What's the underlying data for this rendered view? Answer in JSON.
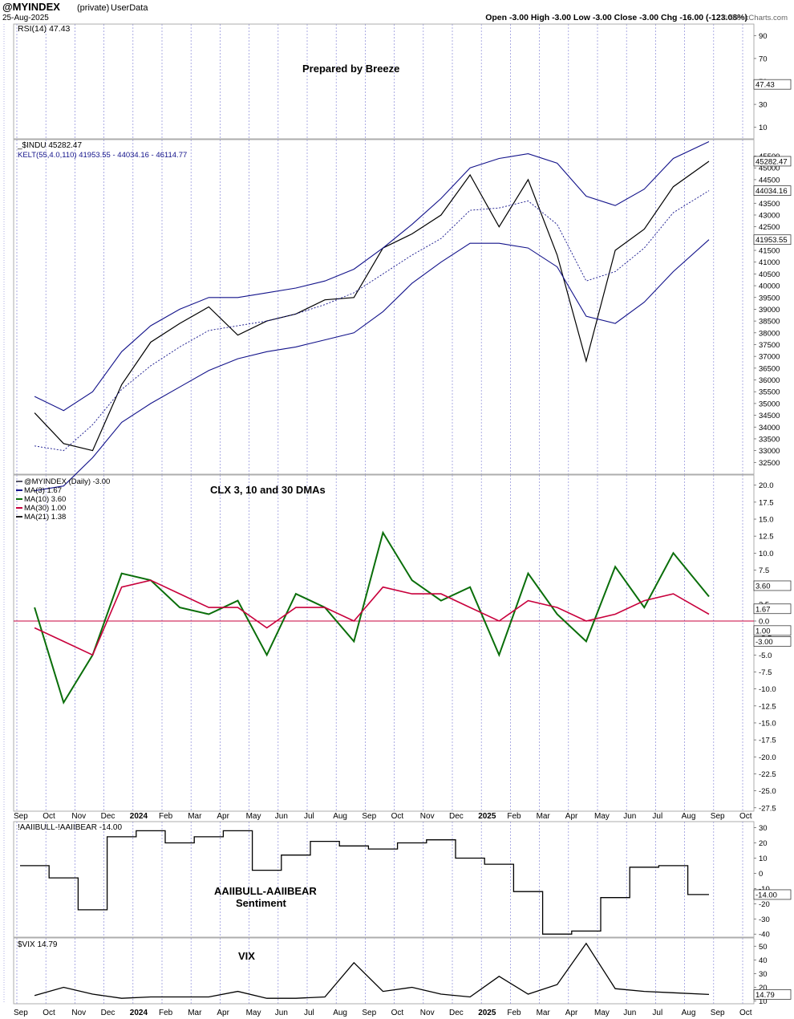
{
  "header": {
    "symbol": "@MYINDEX",
    "privacy": "(private)",
    "source": "UserData",
    "date": "25-Aug-2025",
    "ohlc": "Open -3.00  High -3.00  Low -3.00  Close -3.00  Chg -16.00 (-123.08%)",
    "credit": "© StockCharts.com"
  },
  "colors": {
    "grid": "#8a8ad8",
    "band": "#12128a",
    "ma10": "#0a6e0a",
    "ma30": "#c8003c",
    "clx_raw": "#b0b0dc",
    "zero_line": "#c8003c"
  },
  "chart_data": [
    {
      "type": "line",
      "panel": "rsi",
      "legend": "RSI(14) 47.43",
      "annotation": "Prepared by Breeze",
      "y_ticks": [
        90,
        70,
        50,
        30,
        10
      ],
      "last_value_tag": "47.43",
      "ylim": [
        0,
        100
      ]
    },
    {
      "type": "line",
      "panel": "price",
      "legend": [
        "_$INDU 45282.47",
        "KELT(55,4.0,110) 41953.55 - 44034.16 - 46114.77"
      ],
      "ylim": [
        32000,
        46200
      ],
      "y_ticks": [
        45500,
        45000,
        44500,
        44000,
        43500,
        43000,
        42500,
        42000,
        41500,
        41000,
        40500,
        40000,
        39500,
        39000,
        38500,
        38000,
        37500,
        37000,
        36500,
        36000,
        35500,
        35000,
        34500,
        34000,
        33500,
        33000,
        32500
      ],
      "last_value_tags": [
        "45282.47",
        "44034.16",
        "41953.55"
      ],
      "x": [
        "Sep-23",
        "Oct-23",
        "Nov-23",
        "Dec-23",
        "Jan-24",
        "Feb-24",
        "Mar-24",
        "Apr-24",
        "May-24",
        "Jun-24",
        "Jul-24",
        "Aug-24",
        "Sep-24",
        "Oct-24",
        "Nov-24",
        "Dec-24",
        "Jan-25",
        "Feb-25",
        "Mar-25",
        "Apr-25",
        "May-25",
        "Jun-25",
        "Jul-25",
        "Aug-25"
      ],
      "series": [
        {
          "values": [
            34600,
            33300,
            33000,
            35800,
            37600,
            38400,
            39100,
            37900,
            38500,
            38800,
            39400,
            39500,
            41600,
            42200,
            43000,
            44700,
            42500,
            44500,
            41300,
            36800,
            41500,
            42400,
            44200,
            45282
          ]
        },
        {
          "values": [
            33200,
            33000,
            34100,
            35600,
            36600,
            37400,
            38100,
            38300,
            38500,
            38800,
            39200,
            39700,
            40500,
            41300,
            42000,
            43200,
            43300,
            43600,
            42600,
            40200,
            40600,
            41600,
            43100,
            44034
          ]
        },
        {
          "values": [
            35300,
            34700,
            35500,
            37200,
            38300,
            39000,
            39500,
            39500,
            39700,
            39900,
            40200,
            40700,
            41600,
            42600,
            43700,
            45000,
            45400,
            45600,
            45200,
            43800,
            43400,
            44100,
            45400,
            46115
          ]
        },
        {
          "values": [
            31300,
            31500,
            32700,
            34200,
            35000,
            35700,
            36400,
            36900,
            37200,
            37400,
            37700,
            38000,
            38900,
            40100,
            41000,
            41800,
            41800,
            41600,
            40800,
            38700,
            38400,
            39300,
            40600,
            41954
          ]
        }
      ]
    },
    {
      "type": "line",
      "panel": "clx",
      "annotation": "CLX 3, 10 and 30 DMAs",
      "legend": [
        "@MYINDEX (Daily) -3.00",
        "MA(3) 1.67",
        "MA(10) 3.60",
        "MA(30) 1.00",
        "MA(21) 1.38"
      ],
      "ylim": [
        -28,
        21.5
      ],
      "y_ticks": [
        20.0,
        17.5,
        15.0,
        12.5,
        10.0,
        7.5,
        5.0,
        2.5,
        0.0,
        -2.5,
        -5.0,
        -7.5,
        -10.0,
        -12.5,
        -15.0,
        -17.5,
        -20.0,
        -22.5,
        -25.0,
        -27.5
      ],
      "last_value_tags": [
        "3.60",
        "1.67",
        "1.00",
        "-3.00"
      ],
      "x": [
        "Sep-23",
        "Oct-23",
        "Nov-23",
        "Dec-23",
        "Jan-24",
        "Feb-24",
        "Mar-24",
        "Apr-24",
        "May-24",
        "Jun-24",
        "Jul-24",
        "Aug-24",
        "Sep-24",
        "Oct-24",
        "Nov-24",
        "Dec-24",
        "Jan-25",
        "Feb-25",
        "Mar-25",
        "Apr-25",
        "May-25",
        "Jun-25",
        "Jul-25",
        "Aug-25"
      ],
      "series": [
        {
          "name": "MA(10)",
          "values": [
            2,
            -12,
            -5,
            7,
            6,
            2,
            1,
            3,
            -5,
            4,
            2,
            -3,
            13,
            6,
            3,
            5,
            -5,
            7,
            1,
            -3,
            8,
            2,
            10,
            3.6
          ]
        },
        {
          "name": "MA(30)",
          "values": [
            -1,
            -3,
            -5,
            5,
            6,
            4,
            2,
            2,
            -1,
            2,
            2,
            0,
            5,
            4,
            4,
            2,
            0,
            3,
            2,
            0,
            1,
            3,
            4,
            1.0
          ]
        }
      ]
    },
    {
      "type": "line",
      "panel": "aaii",
      "legend": "!AAIIBULL-!AAIIBEAR -14.00",
      "annotation": [
        "AAIIBULL-AAIIBEAR",
        "Sentiment"
      ],
      "ylim": [
        -42,
        34
      ],
      "y_ticks": [
        30,
        20,
        10,
        0,
        -10,
        -20,
        -30,
        -40
      ],
      "last_value_tag": "-14.00",
      "x": [
        "Sep-23",
        "Oct-23",
        "Nov-23",
        "Dec-23",
        "Jan-24",
        "Feb-24",
        "Mar-24",
        "Apr-24",
        "May-24",
        "Jun-24",
        "Jul-24",
        "Aug-24",
        "Sep-24",
        "Oct-24",
        "Nov-24",
        "Dec-24",
        "Jan-25",
        "Feb-25",
        "Mar-25",
        "Apr-25",
        "May-25",
        "Jun-25",
        "Jul-25",
        "Aug-25"
      ],
      "values": [
        5,
        -3,
        -24,
        24,
        28,
        20,
        24,
        28,
        2,
        12,
        21,
        18,
        16,
        20,
        22,
        10,
        6,
        -12,
        -40,
        -38,
        -16,
        4,
        5,
        -14
      ]
    },
    {
      "type": "line",
      "panel": "vix",
      "legend": "$VIX 14.79",
      "annotation": "VIX",
      "ylim": [
        8,
        56
      ],
      "y_ticks": [
        50,
        40,
        30,
        20,
        10
      ],
      "last_value_tag": "14.79",
      "x": [
        "Sep-23",
        "Oct-23",
        "Nov-23",
        "Dec-23",
        "Jan-24",
        "Feb-24",
        "Mar-24",
        "Apr-24",
        "May-24",
        "Jun-24",
        "Jul-24",
        "Aug-24",
        "Sep-24",
        "Oct-24",
        "Nov-24",
        "Dec-24",
        "Jan-25",
        "Feb-25",
        "Mar-25",
        "Apr-25",
        "May-25",
        "Jun-25",
        "Jul-25",
        "Aug-25"
      ],
      "values": [
        14,
        20,
        15,
        12,
        13,
        13,
        13,
        17,
        12,
        12,
        13,
        38,
        17,
        20,
        15,
        13,
        28,
        15,
        22,
        52,
        19,
        17,
        16,
        14.79
      ]
    }
  ],
  "x_axis": {
    "labels": [
      "Sep",
      "Oct",
      "Nov",
      "Dec",
      "2024",
      "Feb",
      "Mar",
      "Apr",
      "May",
      "Jun",
      "Jul",
      "Aug",
      "Sep",
      "Oct",
      "Nov",
      "Dec",
      "2025",
      "Feb",
      "Mar",
      "Apr",
      "May",
      "Jun",
      "Jul",
      "Aug",
      "Sep",
      "Oct"
    ],
    "bold": [
      "2024",
      "2025"
    ]
  }
}
